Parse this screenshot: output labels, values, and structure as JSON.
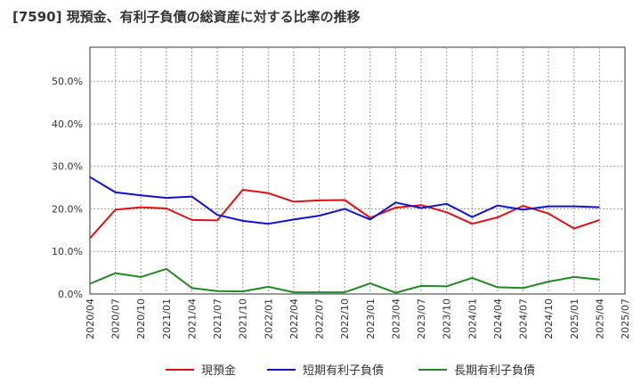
{
  "chart_data": {
    "type": "line",
    "title": "[7590]  現預金、有利子負債の総資産に対する比率の推移",
    "xlabel": "",
    "ylabel": "",
    "ylim": [
      0,
      58
    ],
    "y_ticks": [
      0,
      10,
      20,
      30,
      40,
      50
    ],
    "y_tick_labels": [
      "0.0%",
      "10.0%",
      "20.0%",
      "30.0%",
      "40.0%",
      "50.0%"
    ],
    "grid": true,
    "legend_position": "bottom",
    "categories": [
      "2020/04",
      "2020/07",
      "2020/10",
      "2021/01",
      "2021/04",
      "2021/07",
      "2021/10",
      "2022/01",
      "2022/04",
      "2022/07",
      "2022/10",
      "2023/01",
      "2023/04",
      "2023/07",
      "2023/10",
      "2024/01",
      "2024/04",
      "2024/07",
      "2024/10",
      "2025/01",
      "2025/04",
      "2025/07"
    ],
    "series": [
      {
        "name": "現預金",
        "color": "#dd1111",
        "values": [
          13.1,
          19.8,
          20.4,
          20.1,
          17.4,
          17.3,
          24.5,
          23.7,
          21.7,
          22.0,
          22.1,
          17.9,
          20.3,
          20.9,
          19.2,
          16.5,
          18.0,
          20.7,
          18.9,
          15.4,
          17.4,
          null
        ]
      },
      {
        "name": "短期有利子負債",
        "color": "#1111cc",
        "values": [
          27.5,
          23.9,
          23.2,
          22.6,
          22.9,
          18.6,
          17.2,
          16.5,
          17.5,
          18.4,
          20.0,
          17.5,
          21.5,
          20.2,
          21.2,
          18.1,
          20.8,
          19.8,
          20.6,
          20.6,
          20.4,
          null
        ]
      },
      {
        "name": "長期有利子負債",
        "color": "#228822",
        "values": [
          2.4,
          4.9,
          4.0,
          5.9,
          1.4,
          0.7,
          0.6,
          1.7,
          0.4,
          0.4,
          0.4,
          2.5,
          0.3,
          1.9,
          1.8,
          3.8,
          1.6,
          1.4,
          2.9,
          4.0,
          3.4,
          null
        ]
      }
    ]
  }
}
